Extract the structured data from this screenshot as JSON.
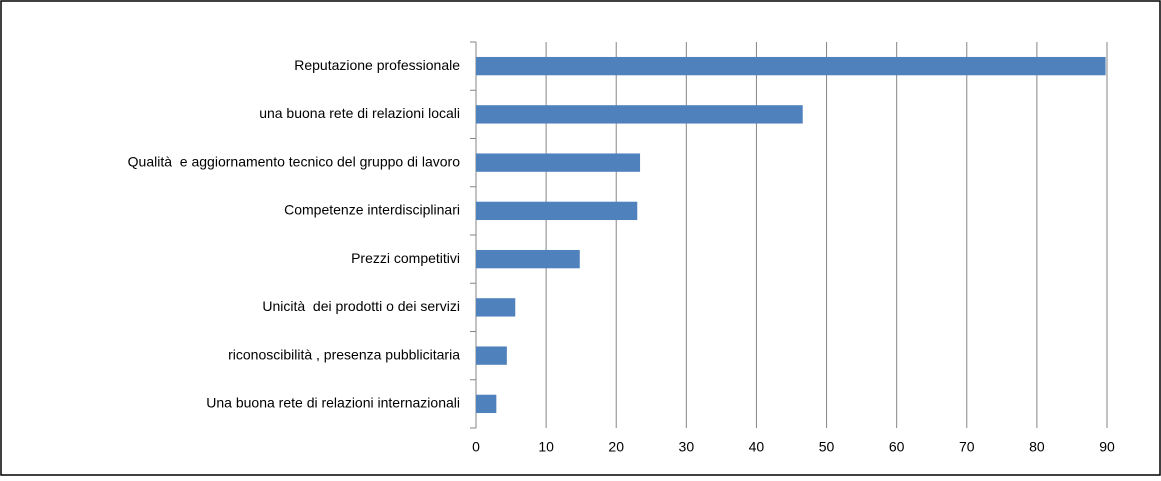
{
  "chart_data": {
    "type": "bar",
    "orientation": "horizontal",
    "categories": [
      "Reputazione professionale",
      "una buona rete di relazioni locali",
      "Qualità  e aggiornamento tecnico del gruppo di lavoro",
      "Competenze interdisciplinari",
      "Prezzi competitivi",
      "Unicità  dei prodotti o dei servizi",
      "riconoscibilità , presenza pubblicitaria",
      "Una buona rete di relazioni internazionali"
    ],
    "values": [
      89.8,
      46.6,
      23.4,
      23.0,
      14.8,
      5.6,
      4.4,
      2.9
    ],
    "color": "#4f81bd",
    "xlim": [
      0,
      90
    ],
    "xticks": [
      0,
      10,
      20,
      30,
      40,
      50,
      60,
      70,
      80,
      90
    ],
    "grid": true
  }
}
